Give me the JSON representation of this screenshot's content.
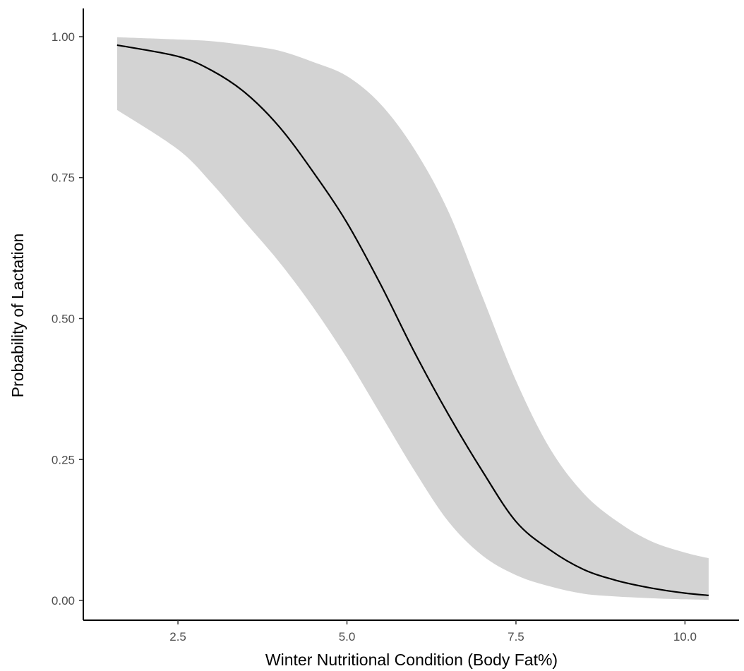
{
  "chart_data": {
    "type": "line",
    "title": "",
    "xlabel": "Winter Nutritional Condition (Body Fat%)",
    "ylabel": "Probability of Lactation",
    "xlim": [
      1.1,
      10.8
    ],
    "ylim": [
      -0.035,
      1.05
    ],
    "x_ticks": [
      2.5,
      5.0,
      7.5,
      10.0
    ],
    "x_tick_labels": [
      "2.5",
      "5.0",
      "7.5",
      "10.0"
    ],
    "y_ticks": [
      0.0,
      0.25,
      0.5,
      0.75,
      1.0
    ],
    "y_tick_labels": [
      "0.00",
      "0.25",
      "0.50",
      "0.75",
      "1.00"
    ],
    "grid": false,
    "legend": "none",
    "colors": {
      "line": "#000000",
      "ribbon": "#d3d3d3",
      "axis": "#000000"
    },
    "series": [
      {
        "x": [
          1.6,
          2.5,
          3.0,
          3.5,
          4.0,
          4.5,
          5.0,
          5.5,
          6.0,
          6.5,
          7.0,
          7.5,
          8.0,
          8.5,
          9.0,
          9.5,
          10.0,
          10.35
        ],
        "y": [
          0.985,
          0.965,
          0.94,
          0.9,
          0.84,
          0.76,
          0.67,
          0.56,
          0.44,
          0.33,
          0.23,
          0.14,
          0.09,
          0.055,
          0.035,
          0.022,
          0.013,
          0.009
        ],
        "lower": [
          0.87,
          0.8,
          0.74,
          0.67,
          0.6,
          0.52,
          0.43,
          0.33,
          0.23,
          0.14,
          0.08,
          0.045,
          0.025,
          0.012,
          0.007,
          0.004,
          0.002,
          0.001
        ],
        "upper": [
          0.999,
          0.995,
          0.992,
          0.985,
          0.975,
          0.955,
          0.93,
          0.88,
          0.8,
          0.69,
          0.54,
          0.39,
          0.27,
          0.19,
          0.14,
          0.105,
          0.085,
          0.075
        ]
      }
    ]
  }
}
